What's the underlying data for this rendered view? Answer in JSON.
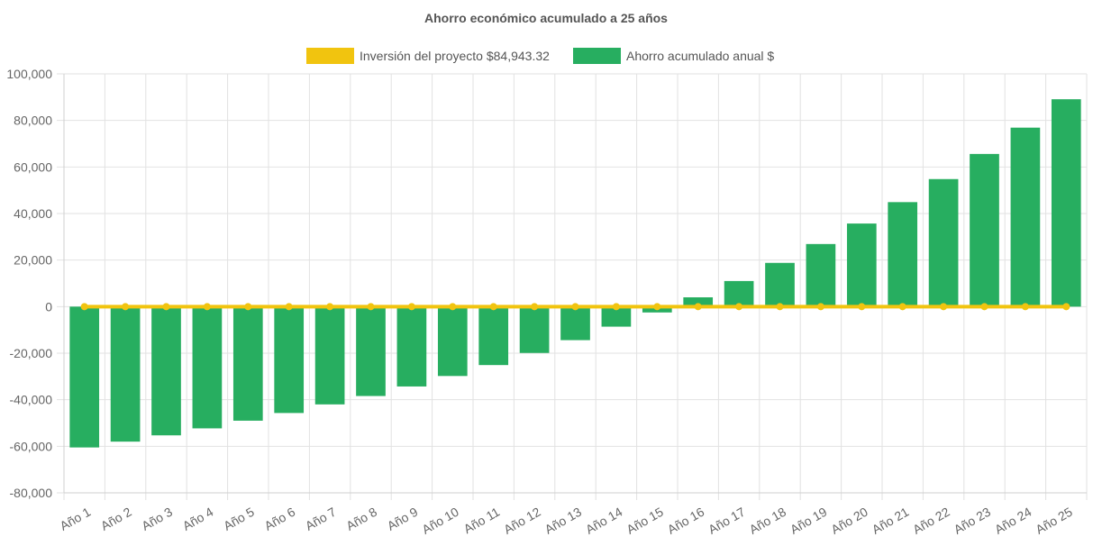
{
  "chart_data": {
    "type": "bar",
    "title": "Ahorro económico acumulado a 25 años",
    "categories": [
      "Año 1",
      "Año 2",
      "Año 3",
      "Año 4",
      "Año 5",
      "Año 6",
      "Año 7",
      "Año 8",
      "Año 9",
      "Año 10",
      "Año 11",
      "Año 12",
      "Año 13",
      "Año 14",
      "Año 15",
      "Año 16",
      "Año 17",
      "Año 18",
      "Año 19",
      "Año 20",
      "Año 21",
      "Año 22",
      "Año 23",
      "Año 24",
      "Año 25"
    ],
    "series": [
      {
        "name": "Inversión del proyecto $84,943.32",
        "type": "line",
        "color": "#f1c40f",
        "values": [
          0,
          0,
          0,
          0,
          0,
          0,
          0,
          0,
          0,
          0,
          0,
          0,
          0,
          0,
          0,
          0,
          0,
          0,
          0,
          0,
          0,
          0,
          0,
          0,
          0
        ]
      },
      {
        "name": "Ahorro acumulado anual $",
        "type": "bar",
        "color": "#27ae60",
        "values": [
          -60500,
          -58000,
          -55300,
          -52300,
          -49000,
          -45700,
          -42000,
          -38400,
          -34300,
          -29800,
          -25100,
          -19900,
          -14400,
          -8600,
          -2500,
          4000,
          11000,
          18800,
          26900,
          35700,
          44900,
          54800,
          65600,
          76900,
          89100
        ]
      }
    ],
    "ylim": [
      -80000,
      100000
    ],
    "yticks": [
      "100,000",
      "80,000",
      "60,000",
      "40,000",
      "20,000",
      "0",
      "-20,000",
      "-40,000",
      "-60,000",
      "-80,000"
    ],
    "ytick_values": [
      100000,
      80000,
      60000,
      40000,
      20000,
      0,
      -20000,
      -40000,
      -60000,
      -80000
    ],
    "grid": true,
    "legend_position": "top-center"
  }
}
